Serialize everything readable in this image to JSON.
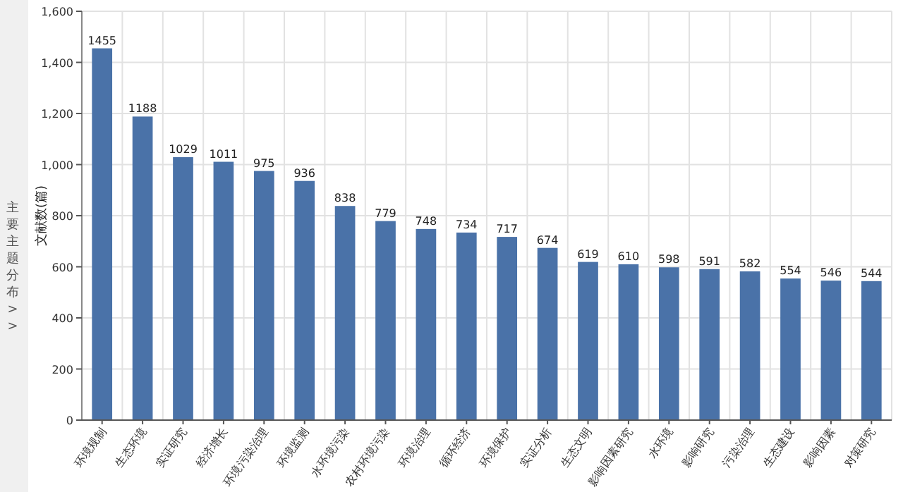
{
  "chart_data": {
    "type": "bar",
    "ylabel": "文献数(篇)",
    "annotations": [
      "主要主题分布 >>"
    ],
    "categories": [
      "环境规制",
      "生态环境",
      "实证研究",
      "经济增长",
      "环境污染治理",
      "环境监测",
      "水环境污染",
      "农村环境污染",
      "环境治理",
      "循环经济",
      "环境保护",
      "实证分析",
      "生态文明",
      "影响因素研究",
      "水环境",
      "影响研究",
      "污染治理",
      "生态建设",
      "影响因素",
      "对策研究"
    ],
    "values": [
      1455,
      1188,
      1029,
      1011,
      975,
      936,
      838,
      779,
      748,
      734,
      717,
      674,
      619,
      610,
      598,
      591,
      582,
      554,
      546,
      544
    ],
    "color": "#4a72a8",
    "data_labels": true,
    "grid": true,
    "ylim": [
      0,
      1600
    ],
    "yticks": [
      {
        "value": 0,
        "label": "0"
      },
      {
        "value": 200,
        "label": "200"
      },
      {
        "value": 400,
        "label": "400"
      },
      {
        "value": 600,
        "label": "600"
      },
      {
        "value": 800,
        "label": "800"
      },
      {
        "value": 1000,
        "label": "1,000"
      },
      {
        "value": 1200,
        "label": "1,200"
      },
      {
        "value": 1400,
        "label": "1,400"
      },
      {
        "value": 1600,
        "label": "1,600"
      }
    ]
  }
}
